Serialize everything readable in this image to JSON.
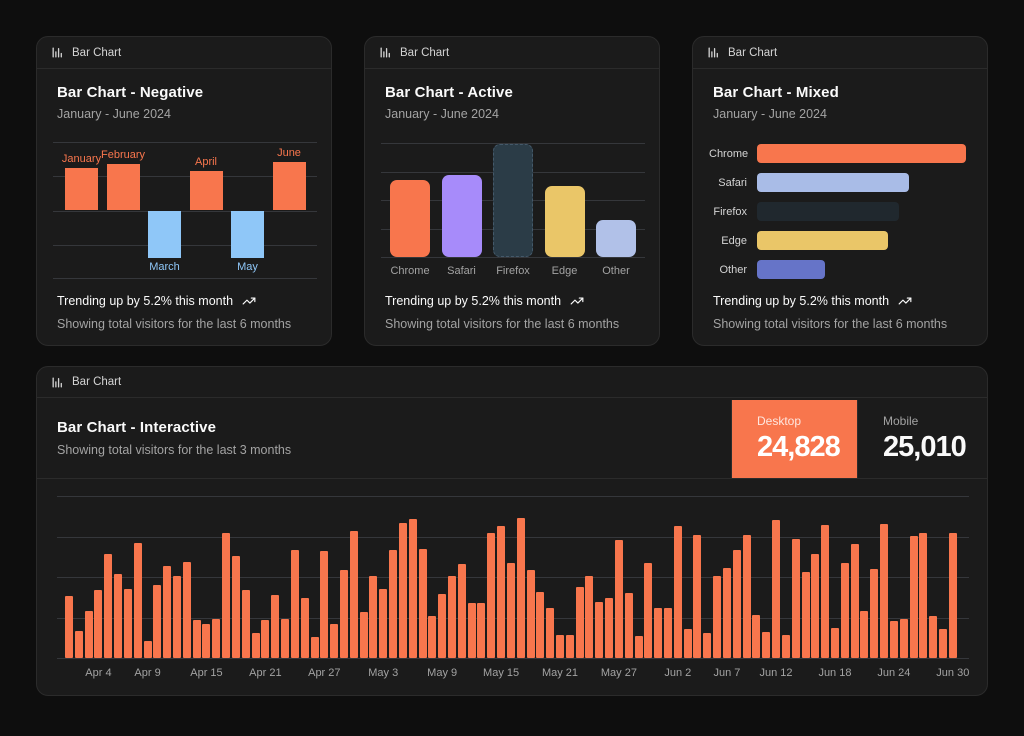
{
  "colors": {
    "orange": "#f8764d",
    "blue": "#8fc7f8",
    "purple": "#a78bfa",
    "firefox_fill": "#2b3c47",
    "firefox_dash": "#44596a",
    "yellow": "#eac668",
    "periwinkle": "#b1c1e8",
    "mixed_safari": "#a9bce7",
    "mixed_firefox": "#20282e",
    "mixed_other": "#6674c8",
    "desktop_active_bg": "#f8764d"
  },
  "cards": {
    "negative": {
      "header_label": "Bar Chart",
      "title": "Bar Chart - Negative",
      "subtitle": "January - June 2024",
      "footer_line1": "Trending up by 5.2% this month",
      "footer_line2": "Showing total visitors for the last 6 months"
    },
    "active": {
      "header_label": "Bar Chart",
      "title": "Bar Chart - Active",
      "subtitle": "January - June 2024",
      "footer_line1": "Trending up by 5.2% this month",
      "footer_line2": "Showing total visitors for the last 6 months"
    },
    "mixed": {
      "header_label": "Bar Chart",
      "title": "Bar Chart - Mixed",
      "subtitle": "January - June 2024",
      "footer_line1": "Trending up by 5.2% this month",
      "footer_line2": "Showing total visitors for the last 6 months"
    },
    "interactive": {
      "header_label": "Bar Chart",
      "title": "Bar Chart - Interactive",
      "subtitle": "Showing total visitors for the last 3 months",
      "toggles": [
        {
          "label": "Desktop",
          "value": "24,828",
          "active": true
        },
        {
          "label": "Mobile",
          "value": "25,010",
          "active": false
        }
      ]
    }
  },
  "chart_data": [
    {
      "id": "negative",
      "type": "bar",
      "title": "Bar Chart - Negative",
      "subtitle": "January - June 2024",
      "categories": [
        "January",
        "February",
        "March",
        "April",
        "May",
        "June"
      ],
      "values": [
        186,
        205,
        -207,
        173,
        -209,
        214
      ],
      "ylim": [
        -300,
        300
      ],
      "grid": true,
      "positive_color": "orange",
      "negative_color": "blue"
    },
    {
      "id": "active",
      "type": "bar",
      "title": "Bar Chart - Active",
      "subtitle": "January - June 2024",
      "categories": [
        "Chrome",
        "Safari",
        "Firefox",
        "Edge",
        "Other"
      ],
      "values": [
        187,
        200,
        275,
        173,
        90
      ],
      "ylim": [
        0,
        300
      ],
      "grid": true,
      "bar_colors": [
        "orange",
        "purple",
        "firefox_fill",
        "yellow",
        "periwinkle"
      ],
      "active_index": 2
    },
    {
      "id": "mixed",
      "type": "bar",
      "orientation": "horizontal",
      "title": "Bar Chart - Mixed",
      "subtitle": "January - June 2024",
      "categories": [
        "Chrome",
        "Safari",
        "Firefox",
        "Edge",
        "Other"
      ],
      "values": [
        275,
        200,
        187,
        173,
        90
      ],
      "xlim": [
        0,
        275
      ],
      "grid": false,
      "bar_colors": [
        "orange",
        "mixed_safari",
        "mixed_firefox",
        "yellow",
        "mixed_other"
      ]
    },
    {
      "id": "interactive",
      "type": "bar",
      "title": "Bar Chart - Interactive",
      "subtitle": "Showing total visitors for the last 3 months",
      "series_shown": "desktop",
      "totals": {
        "desktop": "24,828",
        "mobile": "25,010"
      },
      "x_start_date": "Apr 1",
      "x_end_date": "Jun 30",
      "ylim": [
        0,
        560
      ],
      "grid": true,
      "values": [
        222,
        97,
        167,
        242,
        373,
        301,
        245,
        409,
        59,
        261,
        327,
        292,
        342,
        137,
        120,
        138,
        446,
        364,
        243,
        89,
        137,
        224,
        138,
        387,
        215,
        75,
        383,
        122,
        315,
        454,
        165,
        293,
        247,
        385,
        481,
        498,
        388,
        149,
        227,
        293,
        335,
        197,
        197,
        448,
        473,
        338,
        499,
        315,
        235,
        177,
        82,
        81,
        252,
        294,
        201,
        213,
        420,
        233,
        78,
        340,
        178,
        178,
        470,
        103,
        439,
        88,
        294,
        323,
        385,
        438,
        155,
        92,
        492,
        81,
        426,
        307,
        371,
        475,
        107,
        341,
        408,
        169,
        317,
        480,
        132,
        141,
        434,
        448,
        149,
        103,
        446
      ],
      "x_ticks": [
        {
          "index": 3,
          "label": "Apr 4"
        },
        {
          "index": 8,
          "label": "Apr 9"
        },
        {
          "index": 14,
          "label": "Apr 15"
        },
        {
          "index": 20,
          "label": "Apr 21"
        },
        {
          "index": 26,
          "label": "Apr 27"
        },
        {
          "index": 32,
          "label": "May 3"
        },
        {
          "index": 38,
          "label": "May 9"
        },
        {
          "index": 44,
          "label": "May 15"
        },
        {
          "index": 50,
          "label": "May 21"
        },
        {
          "index": 56,
          "label": "May 27"
        },
        {
          "index": 62,
          "label": "Jun 2"
        },
        {
          "index": 67,
          "label": "Jun 7"
        },
        {
          "index": 72,
          "label": "Jun 12"
        },
        {
          "index": 78,
          "label": "Jun 18"
        },
        {
          "index": 84,
          "label": "Jun 24"
        },
        {
          "index": 90,
          "label": "Jun 30"
        }
      ]
    }
  ]
}
